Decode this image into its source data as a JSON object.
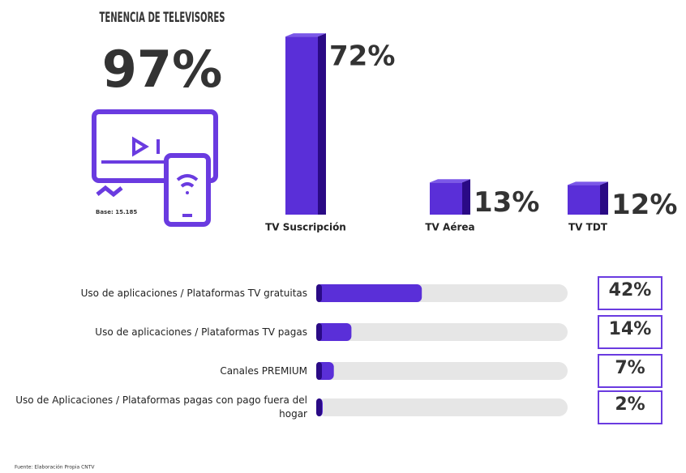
{
  "header": {
    "title": "TENENCIA DE TELEVISORES",
    "total": "97%",
    "base": "Base: 15.185"
  },
  "chart_data": [
    {
      "type": "bar",
      "categories": [
        "TV Suscripción",
        "TV Aérea",
        "TV TDT"
      ],
      "values": [
        72,
        13,
        12
      ],
      "value_labels": [
        "72%",
        "13%",
        "12%"
      ],
      "color": "#5a2fd8",
      "ylim": [
        0,
        75
      ]
    },
    {
      "type": "hbar",
      "categories": [
        "Uso de aplicaciones / Plataformas TV gratuitas",
        "Uso de aplicaciones / Plataformas TV pagas",
        "Canales PREMIUM",
        "Uso de Aplicaciones / Plataformas pagas con pago fuera del hogar"
      ],
      "values": [
        42,
        14,
        7,
        2
      ],
      "value_labels": [
        "42%",
        "14%",
        "7%",
        "2%"
      ],
      "color": "#5a2fd8",
      "xlim": [
        0,
        100
      ]
    }
  ],
  "source": "Fuente: Elaboración Propia CNTV"
}
